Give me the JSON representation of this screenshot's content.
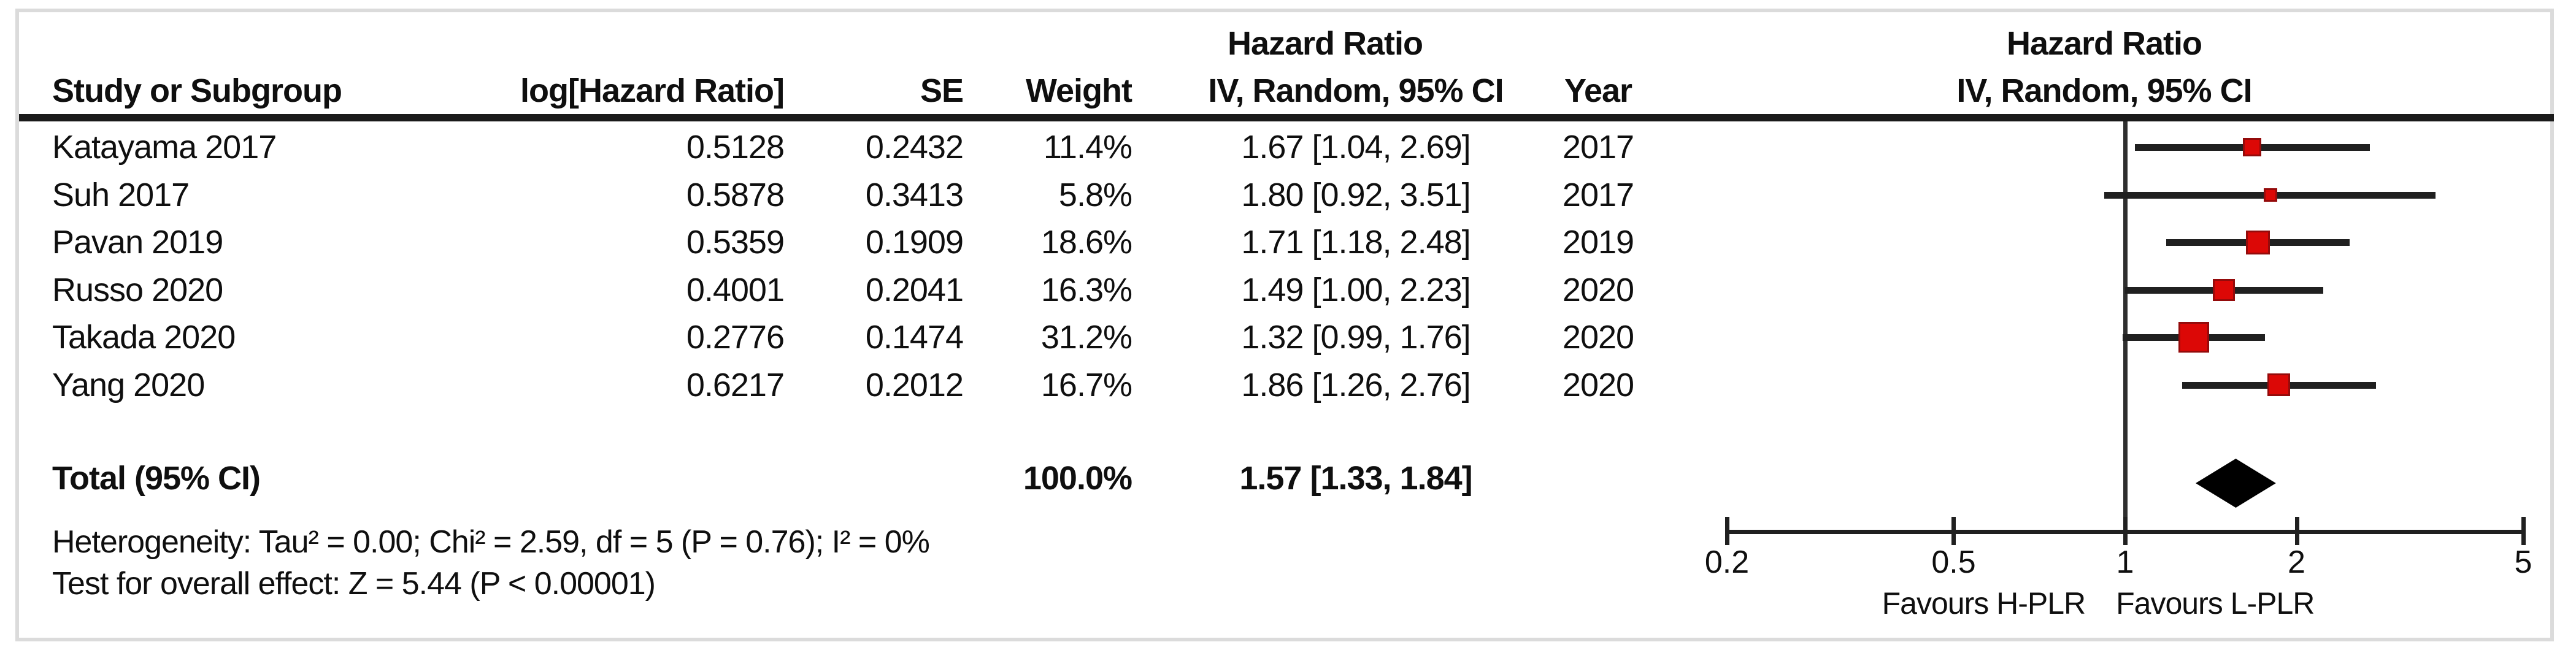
{
  "columns": {
    "study": "Study or Subgroup",
    "log_hr": "log[Hazard Ratio]",
    "se": "SE",
    "weight": "Weight",
    "ci": "IV, Random, 95% CI",
    "year": "Year",
    "effect": "Hazard Ratio"
  },
  "chart_data": {
    "type": "forest",
    "effect_label": "Hazard Ratio",
    "method_label": "IV, Random, 95% CI",
    "x_scale": "log",
    "axis": {
      "min": 0.2,
      "max": 5,
      "ticks": [
        0.2,
        0.5,
        1,
        2,
        5
      ],
      "tick_labels": [
        "0.2",
        "0.5",
        "1",
        "2",
        "5"
      ]
    },
    "favours": {
      "left": "Favours H-PLR",
      "right": "Favours L-PLR"
    },
    "studies": [
      {
        "name": "Katayama 2017",
        "log_hr": "0.5128",
        "se": "0.2432",
        "weight": "11.4%",
        "weight_pct": 11.4,
        "hr": 1.67,
        "ci_low": 1.04,
        "ci_high": 2.69,
        "ci_text": "1.67 [1.04, 2.69]",
        "year": "2017"
      },
      {
        "name": "Suh 2017",
        "log_hr": "0.5878",
        "se": "0.3413",
        "weight": "5.8%",
        "weight_pct": 5.8,
        "hr": 1.8,
        "ci_low": 0.92,
        "ci_high": 3.51,
        "ci_text": "1.80 [0.92, 3.51]",
        "year": "2017"
      },
      {
        "name": "Pavan 2019",
        "log_hr": "0.5359",
        "se": "0.1909",
        "weight": "18.6%",
        "weight_pct": 18.6,
        "hr": 1.71,
        "ci_low": 1.18,
        "ci_high": 2.48,
        "ci_text": "1.71 [1.18, 2.48]",
        "year": "2019"
      },
      {
        "name": "Russo 2020",
        "log_hr": "0.4001",
        "se": "0.2041",
        "weight": "16.3%",
        "weight_pct": 16.3,
        "hr": 1.49,
        "ci_low": 1.0,
        "ci_high": 2.23,
        "ci_text": "1.49 [1.00, 2.23]",
        "year": "2020"
      },
      {
        "name": "Takada 2020",
        "log_hr": "0.2776",
        "se": "0.1474",
        "weight": "31.2%",
        "weight_pct": 31.2,
        "hr": 1.32,
        "ci_low": 0.99,
        "ci_high": 1.76,
        "ci_text": "1.32 [0.99, 1.76]",
        "year": "2020"
      },
      {
        "name": "Yang 2020",
        "log_hr": "0.6217",
        "se": "0.2012",
        "weight": "16.7%",
        "weight_pct": 16.7,
        "hr": 1.86,
        "ci_low": 1.26,
        "ci_high": 2.76,
        "ci_text": "1.86 [1.26, 2.76]",
        "year": "2020"
      }
    ],
    "total": {
      "label": "Total (95% CI)",
      "weight": "100.0%",
      "weight_pct": 100.0,
      "hr": 1.57,
      "ci_low": 1.33,
      "ci_high": 1.84,
      "ci_text": "1.57 [1.33, 1.84]"
    },
    "footnotes": {
      "heterogeneity": "Heterogeneity: Tau² = 0.00; Chi² = 2.59, df = 5 (P = 0.76); I² = 0%",
      "overall_effect": "Test for overall effect: Z = 5.44 (P < 0.00001)"
    }
  },
  "colors": {
    "marker": "#dc0806",
    "marker_border": "#940b0b",
    "ci_line": "#202020",
    "diamond": "#000000",
    "rule": "#1a1a1a",
    "axis": "#202020",
    "frame": "#dbdbdb"
  }
}
